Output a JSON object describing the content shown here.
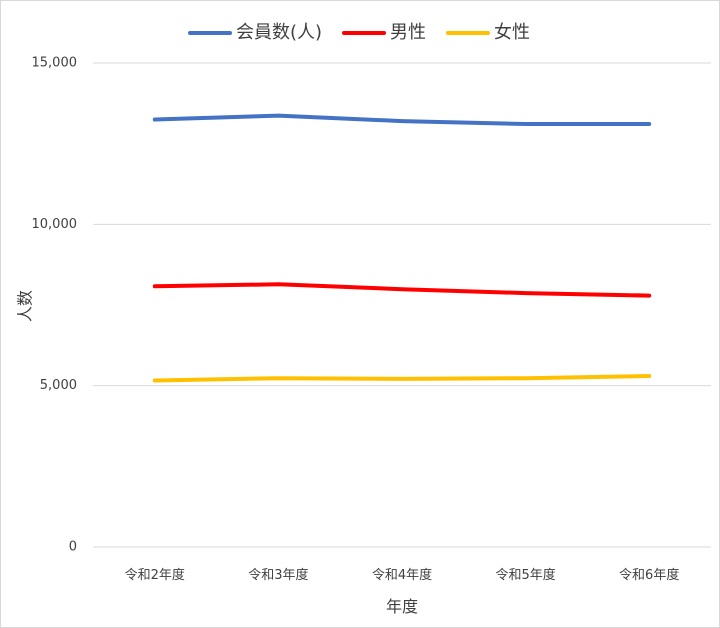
{
  "chart_data": {
    "type": "line",
    "categories": [
      "令和2年度",
      "令和3年度",
      "令和4年度",
      "令和5年度",
      "令和6年度"
    ],
    "series": [
      {
        "name": "会員数(人)",
        "color": "#4472C4",
        "values": [
          13250,
          13370,
          13200,
          13110,
          13110
        ]
      },
      {
        "name": "男性",
        "color": "#FF0000",
        "values": [
          8080,
          8140,
          7990,
          7870,
          7790
        ]
      },
      {
        "name": "女性",
        "color": "#FFC000",
        "values": [
          5160,
          5230,
          5210,
          5230,
          5300
        ]
      }
    ],
    "xlabel": "年度",
    "ylabel": "人数",
    "ylim": [
      0,
      15000
    ],
    "yticks": [
      0,
      5000,
      10000,
      15000
    ],
    "ytick_labels": [
      "0",
      "5,000",
      "10,000",
      "15,000"
    ],
    "grid": true,
    "legend_position": "top"
  }
}
